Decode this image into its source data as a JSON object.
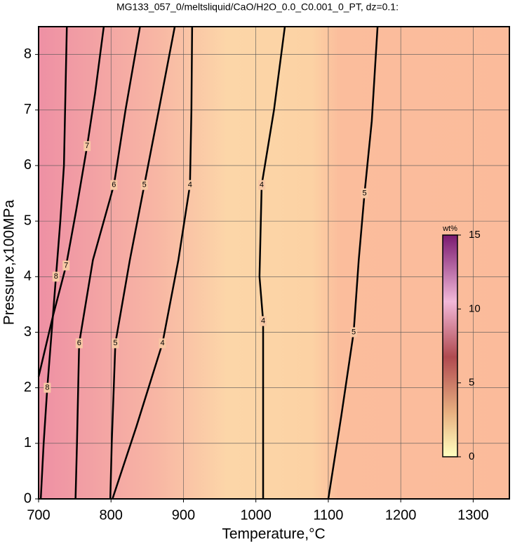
{
  "chart_data": {
    "type": "contour",
    "title": "MG133_057_0/meltsliquid/CaO/H2O_0.0_C0.001_0_PT, dz=0.1:",
    "xlabel": "Temperature,°C",
    "ylabel": "Pressure,x100MPa",
    "xlim": [
      700,
      1350
    ],
    "xticks": [
      700,
      800,
      900,
      1000,
      1100,
      1200,
      1300
    ],
    "ylim": [
      0,
      8.5
    ],
    "yticks": [
      0,
      1,
      2,
      3,
      4,
      5,
      6,
      7,
      8
    ],
    "grid": true,
    "contours": [
      {
        "level": 8,
        "x": [
          703,
          707,
          712,
          718,
          724,
          730,
          735,
          739
        ],
        "y": [
          0,
          1,
          2,
          3,
          4,
          5,
          6,
          8.5
        ]
      },
      {
        "level": 7,
        "x": [
          700,
          720,
          738,
          752,
          767,
          778,
          790
        ],
        "y": [
          2.2,
          3.3,
          4.2,
          5.2,
          6.35,
          7.3,
          8.5
        ]
      },
      {
        "level": 6,
        "x": [
          751,
          753,
          756,
          775,
          804,
          820,
          840
        ],
        "y": [
          0,
          1,
          2.8,
          4.3,
          5.65,
          7,
          8.5
        ]
      },
      {
        "level": 5,
        "x": [
          799,
          801,
          806,
          826,
          846,
          866,
          888
        ],
        "y": [
          0,
          1,
          2.8,
          4.3,
          5.65,
          7,
          8.5
        ]
      },
      {
        "level": 4,
        "x": [
          802,
          835,
          871,
          893,
          909,
          911,
          912
        ],
        "y": [
          0,
          1.3,
          2.8,
          4.3,
          5.65,
          7,
          8.5
        ]
      },
      {
        "level": 4,
        "x": [
          1010,
          1010,
          1010,
          1005,
          1008,
          1025,
          1040
        ],
        "y": [
          0,
          1.5,
          3.2,
          4,
          5.65,
          7,
          8.5
        ]
      },
      {
        "level": 5,
        "x": [
          1100,
          1118,
          1135,
          1142,
          1150,
          1160,
          1168
        ],
        "y": [
          0,
          1.5,
          3,
          4.3,
          5.5,
          6.8,
          8.5
        ]
      }
    ],
    "colorbar": {
      "label": "wt%",
      "lim": [
        0,
        15
      ],
      "ticks": [
        0,
        5,
        10,
        15
      ]
    }
  }
}
